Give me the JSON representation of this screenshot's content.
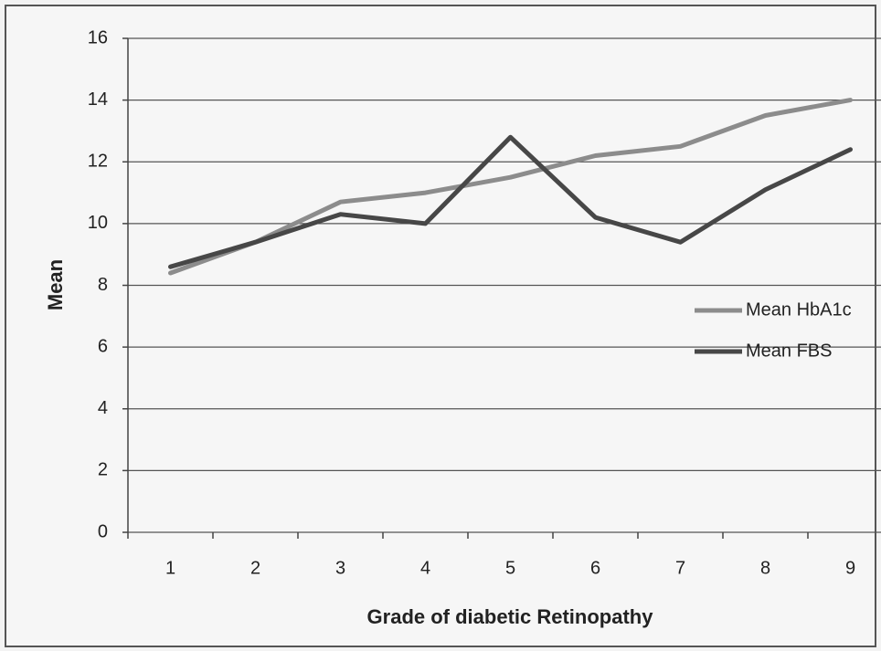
{
  "chart_data": {
    "type": "line",
    "x_label": "Grade of diabetic Retinopathy",
    "y_label": "Mean",
    "categories": [
      "1",
      "2",
      "3",
      "4",
      "5",
      "6",
      "7",
      "8",
      "9"
    ],
    "series": [
      {
        "name": "Mean HbA1c",
        "color": "#8c8c8c",
        "values": [
          8.4,
          9.4,
          10.7,
          11.0,
          11.5,
          12.2,
          12.5,
          13.5,
          14.0
        ]
      },
      {
        "name": "Mean FBS",
        "color": "#474747",
        "values": [
          8.6,
          9.4,
          10.3,
          10.0,
          12.8,
          10.2,
          9.4,
          11.1,
          12.4
        ]
      }
    ],
    "ylim": [
      0,
      16
    ],
    "yticks": [
      0,
      2,
      4,
      6,
      8,
      10,
      12,
      14,
      16
    ],
    "grid": true,
    "legend": "right"
  }
}
